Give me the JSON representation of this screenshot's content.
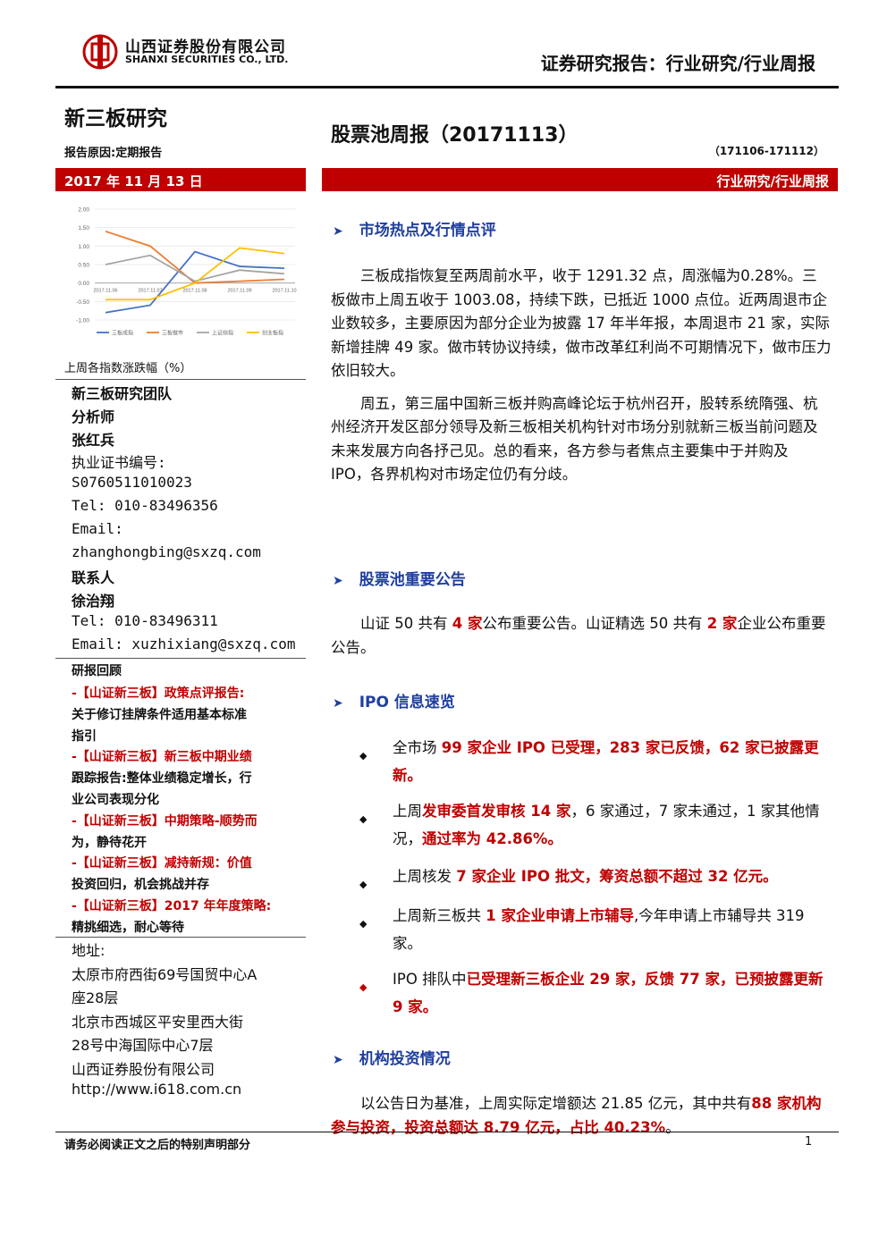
{
  "header": {
    "company_cn": "山西证券股份有限公司",
    "company_en": "SHANXI SECURITIES CO., LTD.",
    "report_type": "证券研究报告：行业研究/行业周报",
    "logo_color": "#c00000"
  },
  "left": {
    "section_title": "新三板研究",
    "reason": "报告原因:定期报告",
    "date": "2017 年 11 月 13 日",
    "chart_caption": "上周各指数涨跌幅（%）",
    "team": [
      {
        "text": "新三板研究团队",
        "bold": true
      },
      {
        "text": "分析师",
        "bold": true
      },
      {
        "text": "张红兵",
        "bold": true
      },
      {
        "text": "执业证书编号:",
        "bold": false
      },
      {
        "text": "S0760511010023",
        "bold": false
      },
      {
        "text": "Tel: 010-83496356",
        "bold": false
      },
      {
        "text": "Email:",
        "bold": false
      },
      {
        "text": "zhanghongbing@sxzq.com",
        "bold": false
      },
      {
        "text": "联系人",
        "bold": true
      },
      {
        "text": "徐治翔",
        "bold": true
      },
      {
        "text": "Tel: 010-83496311",
        "bold": false
      },
      {
        "text": "Email: xuzhixiang@sxzq.com",
        "bold": false
      }
    ],
    "review_title": "研报回顾",
    "reviews": [
      "-【山证新三板】政策点评报告:",
      "关于修订挂牌条件适用基本标准",
      "指引",
      "-【山证新三板】新三板中期业绩",
      "跟踪报告:整体业绩稳定增长，行",
      "业公司表现分化",
      "-【山证新三板】中期策略-顺势而",
      "为，静待花开",
      "-【山证新三板】减持新规：价值",
      "投资回归，机会挑战并存",
      "-【山证新三板】2017 年年度策略:",
      "精挑细选，耐心等待"
    ],
    "address": [
      "地址:",
      "太原市府西街69号国贸中心A",
      "座28层",
      "北京市西城区平安里西大街",
      "28号中海国际中心7层",
      "山西证券股份有限公司",
      "http://www.i618.com.cn"
    ]
  },
  "right": {
    "report_title": "股票池周报（20171113）",
    "period": "（171106-171112）",
    "title_bar": "行业研究/行业周报",
    "s1_title": "市场热点及行情点评",
    "s1_p1": "三板成指恢复至两周前水平，收于 1291.32 点，周涨幅为0.28%。三板做市上周五收于 1003.08，持续下跌，已抵近 1000 点位。近两周退市企业数较多，主要原因为部分企业为披露 17 年半年报，本周退市 21 家，实际新增挂牌 49 家。做市转协议持续，做市改革红利尚不可期情况下，做市压力依旧较大。",
    "s1_p2": "周五，第三届中国新三板并购高峰论坛于杭州召开，股转系统隋强、杭州经济开发区部分领导及新三板相关机构针对市场分别就新三板当前问题及未来发展方向各抒己见。总的看来，各方参与者焦点主要集中于并购及 IPO，各界机构对市场定位仍有分歧。",
    "s2_title": "股票池重要公告",
    "s2_a": "山证 50 共有 ",
    "s2_b": "4 家",
    "s2_c": "公布重要公告。山证精选 50 共有 ",
    "s2_d": "2 家",
    "s2_e": "企业公布重要公告。",
    "s3_title": "IPO 信息速览",
    "b1_a": "全市场 ",
    "b1_b": "99 家企业 IPO 已受理，283 家已反馈，62 家已披露更新。",
    "b2_a": "上周",
    "b2_b": "发审委首发审核 14 家",
    "b2_c": "，6 家通过，7 家未通过，1 家其他情况，",
    "b2_d": "通过率为 42.86%。",
    "b3_a": "上周核发 ",
    "b3_b": "7 家企业 IPO 批文，筹资总额不超过 32 亿元。",
    "b4_a": "上周新三板共 ",
    "b4_b": "1 家企业申请上市辅导",
    "b4_c": ",今年申请上市辅导共 319 家。",
    "b5_a": "IPO 排队中",
    "b5_b": "已受理新三板企业 29 家，反馈 77 家，已预披露更新 9 家。",
    "s4_title": "机构投资情况",
    "s4_a": "以公告日为基准，上周实际定增额达 21.85 亿元，其中共有",
    "s4_b": "88 家机构参与投资，投资总额达 8.79 亿元，占比 40.23%",
    "s4_c": "。"
  },
  "footer": {
    "disclaimer": "请务必阅读正文之后的特别声明部分",
    "page": "1"
  },
  "chart_data": {
    "type": "line",
    "x": [
      "2017.11.06",
      "2017.11.07",
      "2017.11.08",
      "2017.11.09",
      "2017.11.10"
    ],
    "ylim": [
      -1.0,
      2.0
    ],
    "yticks": [
      "2.00",
      "1.50",
      "1.00",
      "0.50",
      "0.00",
      "-0.50",
      "-1.00"
    ],
    "series": [
      {
        "name": "三板成指",
        "color": "#4472c4",
        "values": [
          -0.8,
          -0.6,
          0.85,
          0.45,
          0.4
        ]
      },
      {
        "name": "三板做市",
        "color": "#ed7d31",
        "values": [
          1.4,
          1.0,
          0.0,
          0.05,
          0.1
        ]
      },
      {
        "name": "上证综指",
        "color": "#a5a5a5",
        "values": [
          0.5,
          0.75,
          0.05,
          0.35,
          0.25
        ]
      },
      {
        "name": "创业板指",
        "color": "#ffc000",
        "values": [
          -0.45,
          -0.45,
          0.0,
          0.95,
          0.8
        ]
      }
    ]
  }
}
